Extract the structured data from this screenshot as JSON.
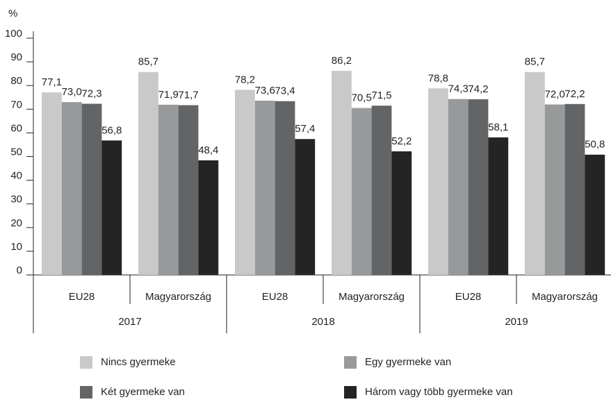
{
  "chart_data": {
    "type": "bar",
    "ylabel": "%",
    "categories": [
      "EU28",
      "Magyarország",
      "EU28",
      "Magyarország",
      "EU28",
      "Magyarország"
    ],
    "category_groups": [
      "2017",
      "2018",
      "2019"
    ],
    "ylim": [
      0,
      100
    ],
    "yticks": [
      0,
      10,
      20,
      30,
      40,
      50,
      60,
      70,
      80,
      90,
      100
    ],
    "series": [
      {
        "name": "Nincs gyermeke",
        "color": "#c9c9ca",
        "values": [
          77.1,
          85.7,
          78.2,
          86.2,
          78.8,
          85.7
        ],
        "value_labels": [
          "77,1",
          "85,7",
          "78,2",
          "86,2",
          "78,8",
          "85,7"
        ]
      },
      {
        "name": "Egy gyermeke van",
        "color": "#98999b",
        "values": [
          73.0,
          71.9,
          73.6,
          70.5,
          74.3,
          72.0
        ],
        "value_labels": [
          "73,0",
          "71,9",
          "73,6",
          "70,5",
          "74,3",
          "72,0"
        ]
      },
      {
        "name": "Két gyermeke van",
        "color": "#636466",
        "values": [
          72.3,
          71.7,
          73.4,
          71.5,
          74.2,
          72.2
        ],
        "value_labels": [
          "72,3",
          "71,7",
          "73,4",
          "71,5",
          "74,2",
          "72,2"
        ]
      },
      {
        "name": "Három vagy több gyermeke van",
        "color": "#262324",
        "values": [
          56.8,
          48.4,
          57.4,
          52.2,
          58.1,
          50.8
        ],
        "value_labels": [
          "56,8",
          "48,4",
          "57,4",
          "52,2",
          "58,1",
          "50,8"
        ]
      }
    ]
  }
}
